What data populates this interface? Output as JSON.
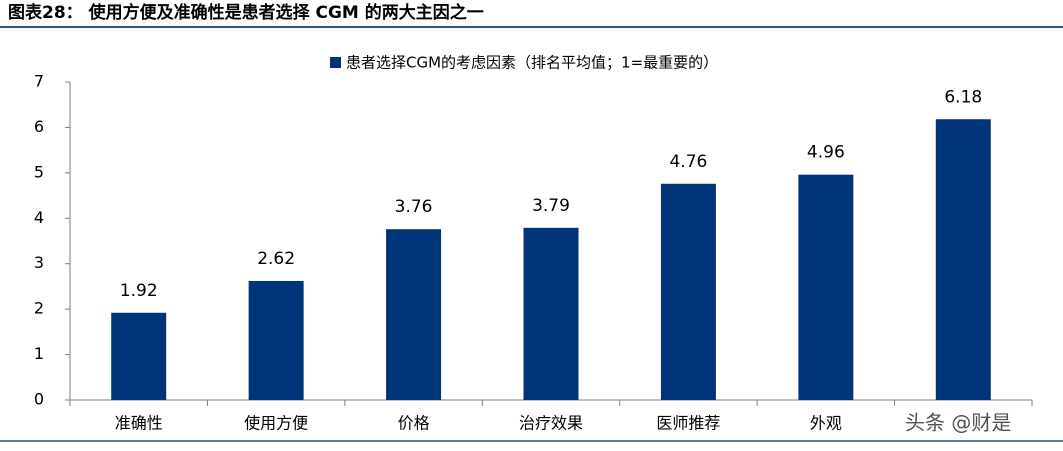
{
  "chart_data": {
    "type": "bar",
    "title": "图表28： 使用方便及准确性是患者选择 CGM 的两大主因之一",
    "categories": [
      "准确性",
      "使用方便",
      "价格",
      "治疗效果",
      "医师推荐",
      "外观",
      null
    ],
    "series": [
      {
        "name": "患者选择CGM的考虑因素（排名平均值；1=最重要的）",
        "color": "#003478",
        "values": [
          1.92,
          2.62,
          3.76,
          3.79,
          4.76,
          4.96,
          6.18
        ]
      }
    ],
    "ylim": [
      0,
      7
    ],
    "yticks": [
      0,
      1,
      2,
      3,
      4,
      5,
      6,
      7
    ],
    "grid": false,
    "watermark": "头条 @财是"
  }
}
